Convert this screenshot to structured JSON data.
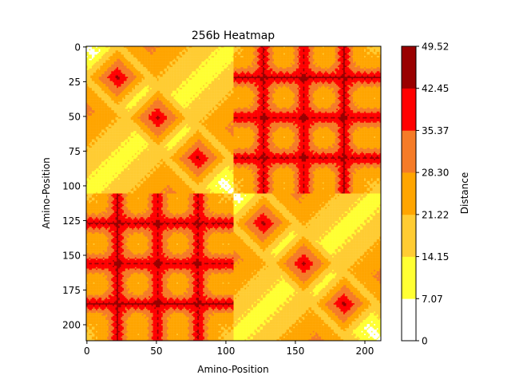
{
  "chart_data": {
    "type": "heatmap",
    "title": "256b Heatmap",
    "xlabel": "Amino-Position",
    "ylabel": "Amino-Position",
    "n": 212,
    "xlim": [
      0,
      212
    ],
    "ylim": [
      212,
      0
    ],
    "xticks": [
      0,
      50,
      100,
      150,
      200
    ],
    "yticks": [
      0,
      25,
      50,
      75,
      100,
      125,
      150,
      175,
      200
    ],
    "colorbar": {
      "label": "Distance",
      "ticks": [
        "0",
        "7.07",
        "14.15",
        "21.22",
        "28.30",
        "35.37",
        "42.45",
        "49.52"
      ],
      "bins": [
        {
          "from": 0,
          "to": 7.07,
          "color": "#ffffff"
        },
        {
          "from": 7.07,
          "to": 14.15,
          "color": "#ffff33"
        },
        {
          "from": 14.15,
          "to": 21.22,
          "color": "#ffcc33"
        },
        {
          "from": 21.22,
          "to": 28.3,
          "color": "#ffa500"
        },
        {
          "from": 28.3,
          "to": 35.37,
          "color": "#f57b27"
        },
        {
          "from": 35.37,
          "to": 42.45,
          "color": "#ff0000"
        },
        {
          "from": 42.45,
          "to": 49.52,
          "color": "#990000"
        }
      ]
    },
    "domains": [
      {
        "start": 0,
        "end": 106,
        "cores": [
          22,
          51,
          80
        ]
      },
      {
        "start": 106,
        "end": 212,
        "cores": [
          127,
          156,
          185
        ]
      }
    ]
  }
}
